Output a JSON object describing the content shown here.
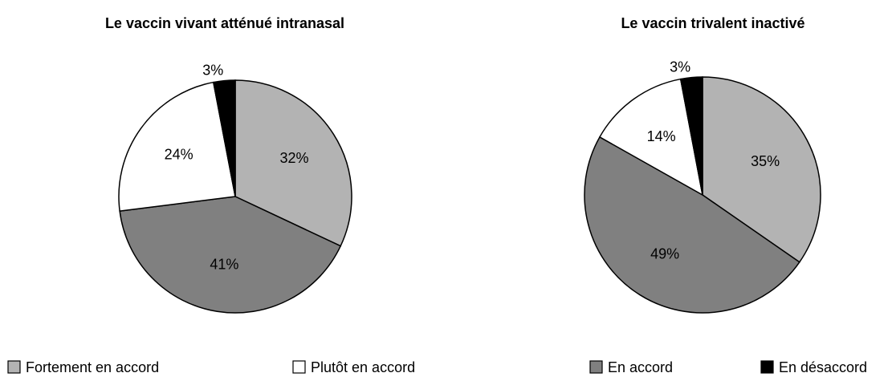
{
  "chart_data": [
    {
      "type": "pie",
      "title": "Le vaccin vivant atténué intranasal",
      "categories": [
        "Fortement en accord",
        "En accord",
        "Plutôt en accord",
        "En désaccord"
      ],
      "colors": [
        "#b3b3b3",
        "#808080",
        "#ffffff",
        "#000000"
      ],
      "values": [
        32,
        41,
        24,
        3
      ],
      "value_labels": [
        "32%",
        "41%",
        "24%",
        "3%"
      ]
    },
    {
      "type": "pie",
      "title": "Le vaccin trivalent inactivé",
      "categories": [
        "Fortement en accord",
        "En accord",
        "Plutôt en accord",
        "En désaccord"
      ],
      "colors": [
        "#b3b3b3",
        "#808080",
        "#ffffff",
        "#000000"
      ],
      "values": [
        35,
        49,
        14,
        3
      ],
      "value_labels": [
        "35%",
        "49%",
        "14%",
        "3%"
      ]
    }
  ]
}
